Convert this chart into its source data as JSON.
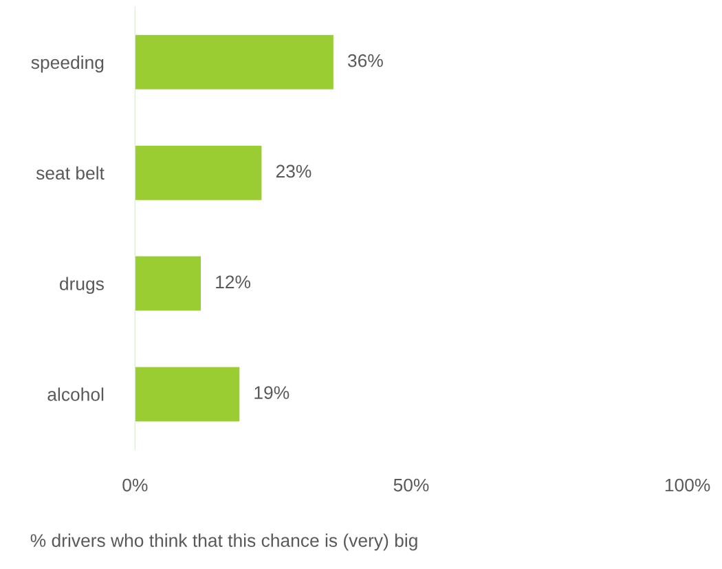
{
  "chart_data": {
    "type": "bar",
    "orientation": "horizontal",
    "categories": [
      "speeding",
      "seat belt",
      "drugs",
      "alcohol"
    ],
    "values": [
      36,
      23,
      12,
      19
    ],
    "value_labels": [
      "36%",
      "23%",
      "12%",
      "19%"
    ],
    "color": "#9acd32",
    "xlim": [
      0,
      100
    ],
    "xticks": [
      {
        "value": 0,
        "label": "0%"
      },
      {
        "value": 50,
        "label": "50%"
      },
      {
        "value": 100,
        "label": "100%"
      }
    ],
    "xlabel": "% drivers who think that this chance is (very) big",
    "grid": false,
    "legend": false
  }
}
